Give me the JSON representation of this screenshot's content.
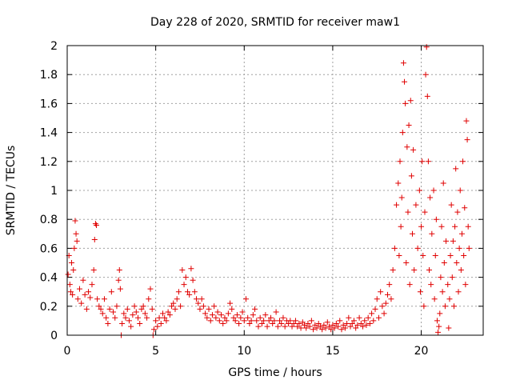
{
  "chart_data": {
    "type": "scatter",
    "title": "Day 228 of 2020, SRMTID for receiver maw1",
    "xlabel": "GPS time / hours",
    "ylabel": "SRMTID / TECUs",
    "xlim": [
      0,
      23.5
    ],
    "ylim": [
      0,
      2
    ],
    "x_ticks": [
      0,
      5,
      10,
      15,
      20
    ],
    "x_tick_labels": [
      "0",
      "5",
      "10",
      "15",
      "20"
    ],
    "y_ticks": [
      0,
      0.2,
      0.4,
      0.6,
      0.8,
      1.0,
      1.2,
      1.4,
      1.6,
      1.8,
      2.0
    ],
    "y_tick_labels": [
      "0",
      "0.2",
      "0.4",
      "0.6",
      "0.8",
      "1",
      "1.2",
      "1.4",
      "1.6",
      "1.8",
      "2"
    ],
    "grid": true,
    "marker": "+",
    "color": "#e00000",
    "series": [
      {
        "name": "SRMTID",
        "points": [
          [
            0.05,
            0.42
          ],
          [
            0.1,
            0.55
          ],
          [
            0.15,
            0.35
          ],
          [
            0.2,
            0.3
          ],
          [
            0.25,
            0.5
          ],
          [
            0.3,
            0.28
          ],
          [
            0.35,
            0.45
          ],
          [
            0.4,
            0.6
          ],
          [
            0.45,
            0.79
          ],
          [
            0.5,
            0.7
          ],
          [
            0.55,
            0.65
          ],
          [
            0.6,
            0.25
          ],
          [
            0.7,
            0.32
          ],
          [
            0.8,
            0.22
          ],
          [
            0.9,
            0.38
          ],
          [
            1.0,
            0.28
          ],
          [
            1.1,
            0.18
          ],
          [
            1.2,
            0.3
          ],
          [
            1.3,
            0.26
          ],
          [
            1.4,
            0.35
          ],
          [
            1.5,
            0.45
          ],
          [
            1.55,
            0.66
          ],
          [
            1.6,
            0.77
          ],
          [
            1.65,
            0.76
          ],
          [
            1.7,
            0.25
          ],
          [
            1.8,
            0.2
          ],
          [
            1.9,
            0.18
          ],
          [
            2.0,
            0.15
          ],
          [
            2.1,
            0.25
          ],
          [
            2.2,
            0.12
          ],
          [
            2.3,
            0.08
          ],
          [
            2.4,
            0.18
          ],
          [
            2.5,
            0.3
          ],
          [
            2.6,
            0.16
          ],
          [
            2.7,
            0.12
          ],
          [
            2.8,
            0.2
          ],
          [
            2.9,
            0.38
          ],
          [
            2.95,
            0.45
          ],
          [
            3.0,
            0.32
          ],
          [
            3.05,
            0.0
          ],
          [
            3.1,
            0.08
          ],
          [
            3.2,
            0.15
          ],
          [
            3.3,
            0.12
          ],
          [
            3.4,
            0.18
          ],
          [
            3.5,
            0.1
          ],
          [
            3.6,
            0.06
          ],
          [
            3.7,
            0.14
          ],
          [
            3.8,
            0.2
          ],
          [
            3.9,
            0.16
          ],
          [
            4.0,
            0.12
          ],
          [
            4.1,
            0.08
          ],
          [
            4.2,
            0.18
          ],
          [
            4.3,
            0.2
          ],
          [
            4.4,
            0.15
          ],
          [
            4.5,
            0.12
          ],
          [
            4.6,
            0.25
          ],
          [
            4.7,
            0.32
          ],
          [
            4.8,
            0.18
          ],
          [
            4.85,
            0.0
          ],
          [
            4.9,
            0.04
          ],
          [
            5.0,
            0.1
          ],
          [
            5.1,
            0.06
          ],
          [
            5.2,
            0.12
          ],
          [
            5.3,
            0.08
          ],
          [
            5.4,
            0.15
          ],
          [
            5.5,
            0.12
          ],
          [
            5.6,
            0.1
          ],
          [
            5.7,
            0.16
          ],
          [
            5.8,
            0.14
          ],
          [
            5.9,
            0.2
          ],
          [
            6.0,
            0.22
          ],
          [
            6.1,
            0.18
          ],
          [
            6.2,
            0.25
          ],
          [
            6.3,
            0.3
          ],
          [
            6.4,
            0.2
          ],
          [
            6.5,
            0.45
          ],
          [
            6.6,
            0.35
          ],
          [
            6.7,
            0.4
          ],
          [
            6.8,
            0.3
          ],
          [
            6.9,
            0.28
          ],
          [
            7.0,
            0.46
          ],
          [
            7.1,
            0.38
          ],
          [
            7.2,
            0.3
          ],
          [
            7.3,
            0.25
          ],
          [
            7.4,
            0.22
          ],
          [
            7.5,
            0.18
          ],
          [
            7.6,
            0.25
          ],
          [
            7.7,
            0.2
          ],
          [
            7.8,
            0.15
          ],
          [
            7.9,
            0.12
          ],
          [
            8.0,
            0.18
          ],
          [
            8.1,
            0.1
          ],
          [
            8.2,
            0.14
          ],
          [
            8.3,
            0.2
          ],
          [
            8.4,
            0.12
          ],
          [
            8.5,
            0.16
          ],
          [
            8.6,
            0.1
          ],
          [
            8.7,
            0.14
          ],
          [
            8.8,
            0.08
          ],
          [
            8.9,
            0.12
          ],
          [
            9.0,
            0.1
          ],
          [
            9.1,
            0.15
          ],
          [
            9.2,
            0.22
          ],
          [
            9.3,
            0.18
          ],
          [
            9.4,
            0.12
          ],
          [
            9.5,
            0.1
          ],
          [
            9.6,
            0.14
          ],
          [
            9.7,
            0.08
          ],
          [
            9.8,
            0.12
          ],
          [
            9.9,
            0.16
          ],
          [
            10.0,
            0.1
          ],
          [
            10.1,
            0.25
          ],
          [
            10.2,
            0.12
          ],
          [
            10.3,
            0.08
          ],
          [
            10.4,
            0.1
          ],
          [
            10.5,
            0.14
          ],
          [
            10.6,
            0.18
          ],
          [
            10.7,
            0.1
          ],
          [
            10.8,
            0.06
          ],
          [
            10.9,
            0.12
          ],
          [
            11.0,
            0.08
          ],
          [
            11.1,
            0.1
          ],
          [
            11.2,
            0.14
          ],
          [
            11.3,
            0.06
          ],
          [
            11.4,
            0.1
          ],
          [
            11.5,
            0.12
          ],
          [
            11.6,
            0.08
          ],
          [
            11.7,
            0.1
          ],
          [
            11.8,
            0.16
          ],
          [
            11.9,
            0.06
          ],
          [
            12.0,
            0.1
          ],
          [
            12.1,
            0.08
          ],
          [
            12.2,
            0.12
          ],
          [
            12.3,
            0.06
          ],
          [
            12.4,
            0.1
          ],
          [
            12.5,
            0.08
          ],
          [
            12.6,
            0.1
          ],
          [
            12.7,
            0.06
          ],
          [
            12.8,
            0.08
          ],
          [
            12.9,
            0.1
          ],
          [
            13.0,
            0.06
          ],
          [
            13.1,
            0.08
          ],
          [
            13.2,
            0.05
          ],
          [
            13.3,
            0.09
          ],
          [
            13.4,
            0.07
          ],
          [
            13.5,
            0.05
          ],
          [
            13.6,
            0.08
          ],
          [
            13.7,
            0.06
          ],
          [
            13.8,
            0.1
          ],
          [
            13.9,
            0.04
          ],
          [
            14.0,
            0.07
          ],
          [
            14.1,
            0.05
          ],
          [
            14.2,
            0.08
          ],
          [
            14.3,
            0.06
          ],
          [
            14.4,
            0.04
          ],
          [
            14.5,
            0.07
          ],
          [
            14.6,
            0.05
          ],
          [
            14.7,
            0.09
          ],
          [
            14.8,
            0.06
          ],
          [
            14.9,
            0.04
          ],
          [
            15.0,
            0.07
          ],
          [
            15.1,
            0.05
          ],
          [
            15.2,
            0.08
          ],
          [
            15.3,
            0.06
          ],
          [
            15.4,
            0.1
          ],
          [
            15.5,
            0.04
          ],
          [
            15.6,
            0.07
          ],
          [
            15.7,
            0.05
          ],
          [
            15.8,
            0.08
          ],
          [
            15.9,
            0.12
          ],
          [
            16.0,
            0.06
          ],
          [
            16.1,
            0.08
          ],
          [
            16.2,
            0.1
          ],
          [
            16.3,
            0.05
          ],
          [
            16.4,
            0.07
          ],
          [
            16.5,
            0.12
          ],
          [
            16.6,
            0.08
          ],
          [
            16.7,
            0.06
          ],
          [
            16.8,
            0.1
          ],
          [
            16.9,
            0.07
          ],
          [
            17.0,
            0.12
          ],
          [
            17.1,
            0.08
          ],
          [
            17.2,
            0.15
          ],
          [
            17.3,
            0.1
          ],
          [
            17.4,
            0.18
          ],
          [
            17.5,
            0.25
          ],
          [
            17.6,
            0.12
          ],
          [
            17.7,
            0.3
          ],
          [
            17.8,
            0.2
          ],
          [
            17.9,
            0.15
          ],
          [
            18.0,
            0.22
          ],
          [
            18.1,
            0.28
          ],
          [
            18.2,
            0.35
          ],
          [
            18.3,
            0.25
          ],
          [
            18.4,
            0.45
          ],
          [
            18.5,
            0.6
          ],
          [
            18.6,
            0.9
          ],
          [
            18.7,
            1.05
          ],
          [
            18.75,
            0.55
          ],
          [
            18.8,
            1.2
          ],
          [
            18.85,
            0.75
          ],
          [
            18.9,
            0.95
          ],
          [
            18.95,
            1.4
          ],
          [
            19.0,
            1.88
          ],
          [
            19.05,
            1.75
          ],
          [
            19.1,
            1.6
          ],
          [
            19.15,
            0.5
          ],
          [
            19.2,
            1.3
          ],
          [
            19.25,
            0.85
          ],
          [
            19.3,
            1.45
          ],
          [
            19.35,
            0.35
          ],
          [
            19.4,
            1.62
          ],
          [
            19.45,
            1.1
          ],
          [
            19.5,
            0.7
          ],
          [
            19.55,
            1.28
          ],
          [
            19.6,
            0.45
          ],
          [
            19.7,
            0.9
          ],
          [
            19.8,
            0.6
          ],
          [
            19.9,
            1.0
          ],
          [
            19.95,
            0.3
          ],
          [
            20.0,
            0.75
          ],
          [
            20.05,
            1.2
          ],
          [
            20.1,
            0.55
          ],
          [
            20.15,
            0.2
          ],
          [
            20.2,
            0.85
          ],
          [
            20.25,
            1.8
          ],
          [
            20.3,
            1.99
          ],
          [
            20.35,
            1.65
          ],
          [
            20.4,
            1.2
          ],
          [
            20.45,
            0.45
          ],
          [
            20.5,
            0.95
          ],
          [
            20.55,
            0.35
          ],
          [
            20.6,
            0.7
          ],
          [
            20.7,
            1.0
          ],
          [
            20.75,
            0.25
          ],
          [
            20.8,
            0.55
          ],
          [
            20.85,
            0.8
          ],
          [
            20.9,
            0.1
          ],
          [
            20.95,
            0.02
          ],
          [
            21.0,
            0.06
          ],
          [
            21.05,
            0.15
          ],
          [
            21.1,
            0.4
          ],
          [
            21.15,
            0.75
          ],
          [
            21.2,
            0.3
          ],
          [
            21.25,
            1.05
          ],
          [
            21.3,
            0.5
          ],
          [
            21.35,
            0.2
          ],
          [
            21.4,
            0.65
          ],
          [
            21.5,
            0.35
          ],
          [
            21.55,
            0.05
          ],
          [
            21.6,
            0.25
          ],
          [
            21.65,
            0.55
          ],
          [
            21.7,
            0.9
          ],
          [
            21.75,
            0.4
          ],
          [
            21.8,
            0.65
          ],
          [
            21.85,
            0.2
          ],
          [
            21.9,
            0.75
          ],
          [
            21.95,
            1.15
          ],
          [
            22.0,
            0.5
          ],
          [
            22.05,
            0.85
          ],
          [
            22.1,
            0.3
          ],
          [
            22.15,
            0.6
          ],
          [
            22.2,
            1.0
          ],
          [
            22.25,
            0.45
          ],
          [
            22.3,
            0.7
          ],
          [
            22.35,
            1.2
          ],
          [
            22.4,
            0.55
          ],
          [
            22.45,
            0.88
          ],
          [
            22.5,
            0.35
          ],
          [
            22.55,
            1.48
          ],
          [
            22.6,
            1.35
          ],
          [
            22.65,
            0.75
          ],
          [
            22.7,
            0.6
          ]
        ]
      }
    ]
  }
}
